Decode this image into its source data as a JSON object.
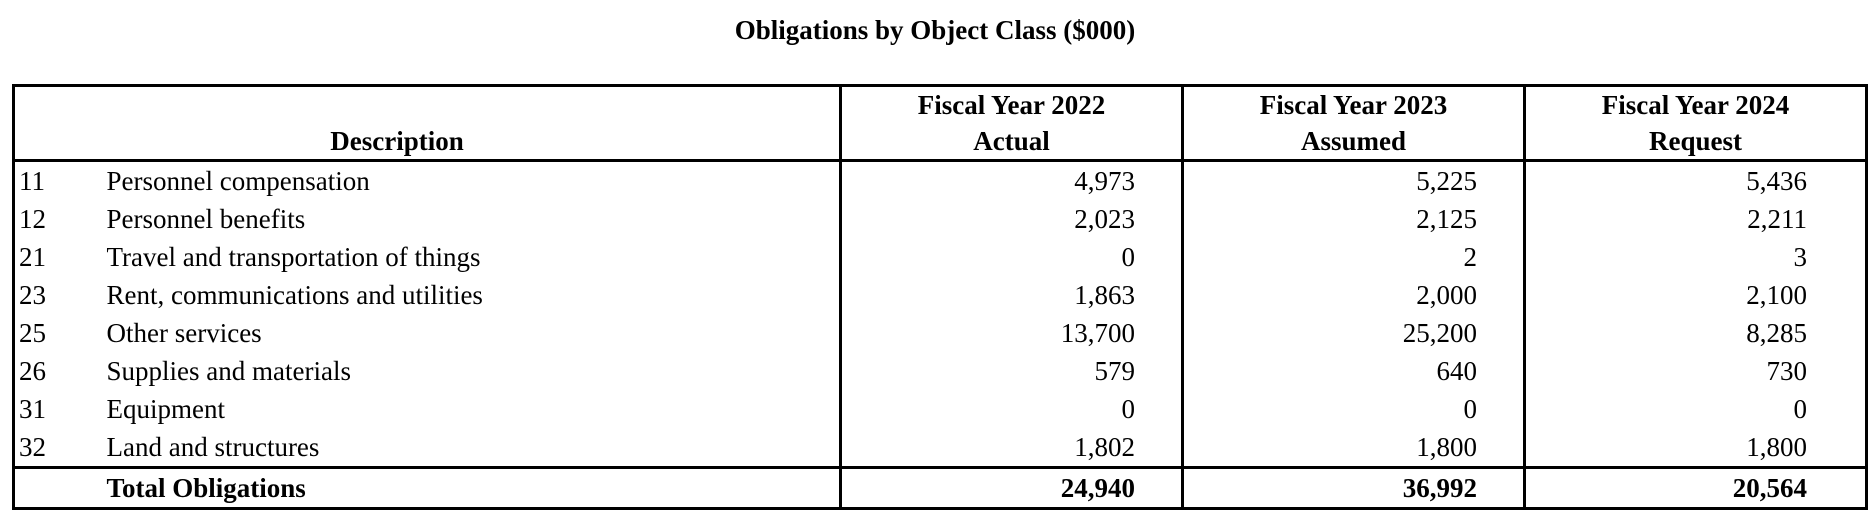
{
  "title": "Obligations by Object Class ($000)",
  "table": {
    "headers": {
      "description": "Description",
      "fy2022": {
        "line1": "Fiscal Year 2022",
        "line2": "Actual"
      },
      "fy2023": {
        "line1": "Fiscal Year 2023",
        "line2": "Assumed"
      },
      "fy2024": {
        "line1": "Fiscal Year 2024",
        "line2": "Request"
      }
    },
    "rows": [
      {
        "code": "11",
        "description": "Personnel compensation",
        "fy2022": "4,973",
        "fy2023": "5,225",
        "fy2024": "5,436"
      },
      {
        "code": "12",
        "description": "Personnel benefits",
        "fy2022": "2,023",
        "fy2023": "2,125",
        "fy2024": "2,211"
      },
      {
        "code": "21",
        "description": "Travel and transportation of things",
        "fy2022": "0",
        "fy2023": "2",
        "fy2024": "3"
      },
      {
        "code": "23",
        "description": "Rent, communications and utilities",
        "fy2022": "1,863",
        "fy2023": "2,000",
        "fy2024": "2,100"
      },
      {
        "code": "25",
        "description": "Other services",
        "fy2022": "13,700",
        "fy2023": "25,200",
        "fy2024": "8,285"
      },
      {
        "code": "26",
        "description": "Supplies and materials",
        "fy2022": "579",
        "fy2023": "640",
        "fy2024": "730"
      },
      {
        "code": "31",
        "description": "Equipment",
        "fy2022": "0",
        "fy2023": "0",
        "fy2024": "0"
      },
      {
        "code": "32",
        "description": "Land and structures",
        "fy2022": "1,802",
        "fy2023": "1,800",
        "fy2024": "1,800"
      }
    ],
    "total": {
      "label": "Total Obligations",
      "fy2022": "24,940",
      "fy2023": "36,992",
      "fy2024": "20,564"
    }
  }
}
